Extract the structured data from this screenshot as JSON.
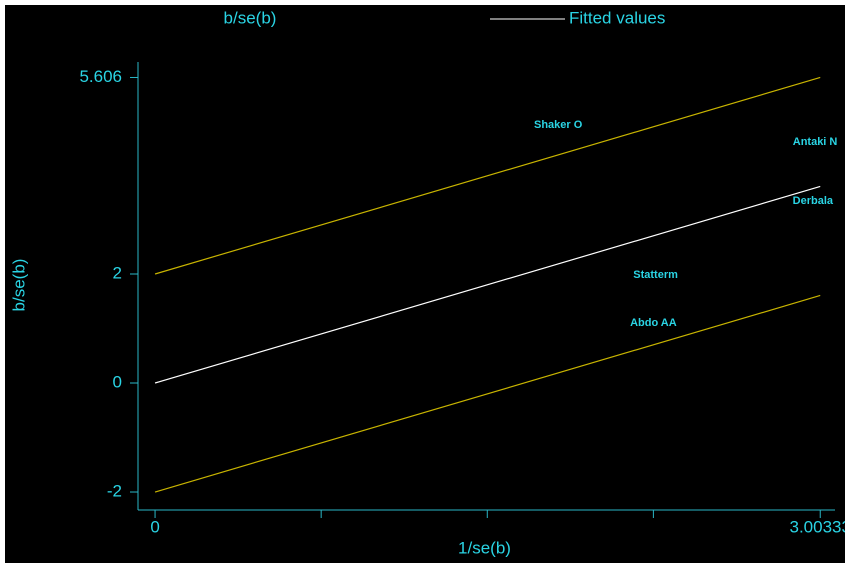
{
  "chart_data": {
    "type": "galbraith",
    "xlabel": "1/se(b)",
    "ylabel": "b/se(b)",
    "xlim": [
      -0.077,
      3.07
    ],
    "ylim": [
      -2.33,
      5.89
    ],
    "xticks": [
      0,
      3.00333
    ],
    "xminor_ticks": [
      0.75,
      1.5,
      2.25
    ],
    "yticks": [
      -2,
      0,
      2,
      5.606
    ],
    "points": {
      "name": "b/se(b)",
      "color": "#2ad4e4",
      "labels": [
        "Shaker O",
        "Antaki N",
        "Derbala",
        "Statterm",
        "Abdo AA"
      ],
      "x": [
        1.82,
        2.98,
        2.97,
        2.26,
        2.25
      ],
      "values": [
        4.73,
        4.42,
        3.34,
        1.98,
        1.1
      ]
    },
    "fit": {
      "name": "Fitted values",
      "color": "#ffffff",
      "x": [
        0,
        3.00333
      ],
      "values": [
        0,
        3.606
      ]
    },
    "bands": [
      {
        "color": "#c8b400",
        "x": [
          0,
          3.00333
        ],
        "values": [
          2,
          5.606
        ]
      },
      {
        "color": "#c8b400",
        "x": [
          0,
          3.00333
        ],
        "values": [
          -2,
          1.606
        ]
      }
    ],
    "axis_color": "#2ab8c8"
  }
}
